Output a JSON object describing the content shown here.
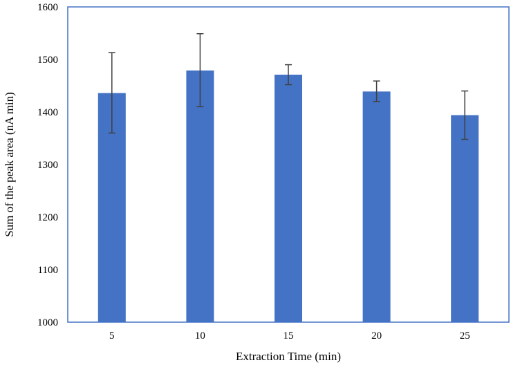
{
  "chart_data": {
    "type": "bar",
    "title": "",
    "xlabel": "Extraction Time (min)",
    "ylabel": "Sum of the peak area (nA min)",
    "categories": [
      "5",
      "10",
      "15",
      "20",
      "25"
    ],
    "values": [
      1436,
      1479,
      1471,
      1439,
      1394
    ],
    "error_high": [
      1513,
      1549,
      1490,
      1459,
      1440
    ],
    "error_low": [
      1360,
      1410,
      1452,
      1420,
      1348
    ],
    "ylim": [
      1000,
      1600
    ],
    "yticks": [
      "1000",
      "1100",
      "1200",
      "1300",
      "1400",
      "1500",
      "1600"
    ],
    "grid": false,
    "legend": "none",
    "colors": {
      "bar": "#4472C4",
      "plot_border": "#4472C4",
      "error_bar": "#404040"
    }
  }
}
